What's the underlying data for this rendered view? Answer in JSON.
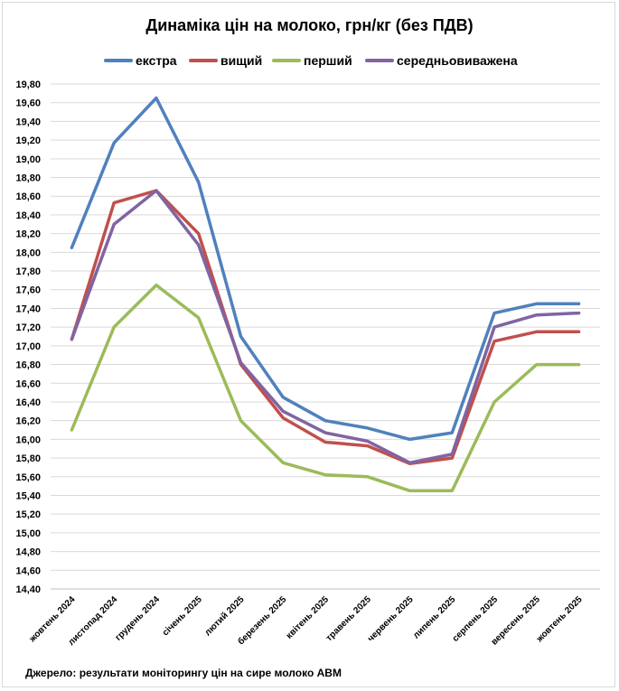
{
  "chart_data": {
    "type": "line",
    "title": "Динаміка цін на молоко, грн/кг (без ПДВ)",
    "xlabel": "",
    "ylabel": "",
    "ylim": [
      14.4,
      19.8
    ],
    "ytick_step": 0.2,
    "grid": true,
    "legend_position": "top",
    "categories": [
      "жовтень 2024",
      "листопад 2024",
      "грудень 2024",
      "січень 2025",
      "лютий 2025",
      "березень 2025",
      "квітень 2025",
      "травень 2025",
      "червень 2025",
      "липень 2025",
      "серпень 2025",
      "вересень 2025",
      "жовтень 2025"
    ],
    "series": [
      {
        "key": "ekstra",
        "name": "екстра",
        "color": "#4f81bd",
        "values": [
          18.05,
          19.17,
          19.65,
          18.75,
          17.1,
          16.45,
          16.2,
          16.12,
          16.0,
          16.07,
          17.35,
          17.45,
          17.45
        ]
      },
      {
        "key": "vyshchyi",
        "name": "вищий",
        "color": "#c0504d",
        "values": [
          17.07,
          18.53,
          18.66,
          18.2,
          16.8,
          16.23,
          15.97,
          15.93,
          15.74,
          15.8,
          17.05,
          17.15,
          17.15
        ]
      },
      {
        "key": "pershyi",
        "name": "перший",
        "color": "#9bbb59",
        "values": [
          16.1,
          17.2,
          17.65,
          17.3,
          16.2,
          15.75,
          15.62,
          15.6,
          15.45,
          15.45,
          16.4,
          16.8,
          16.8
        ]
      },
      {
        "key": "serednio",
        "name": "середньовиважена",
        "color": "#8064a2",
        "values": [
          17.07,
          18.3,
          18.66,
          18.08,
          16.82,
          16.3,
          16.07,
          15.98,
          15.75,
          15.84,
          17.2,
          17.33,
          17.35
        ]
      }
    ]
  },
  "source_note": "Джерело: результати моніторингу цін на сире молоко АВМ"
}
